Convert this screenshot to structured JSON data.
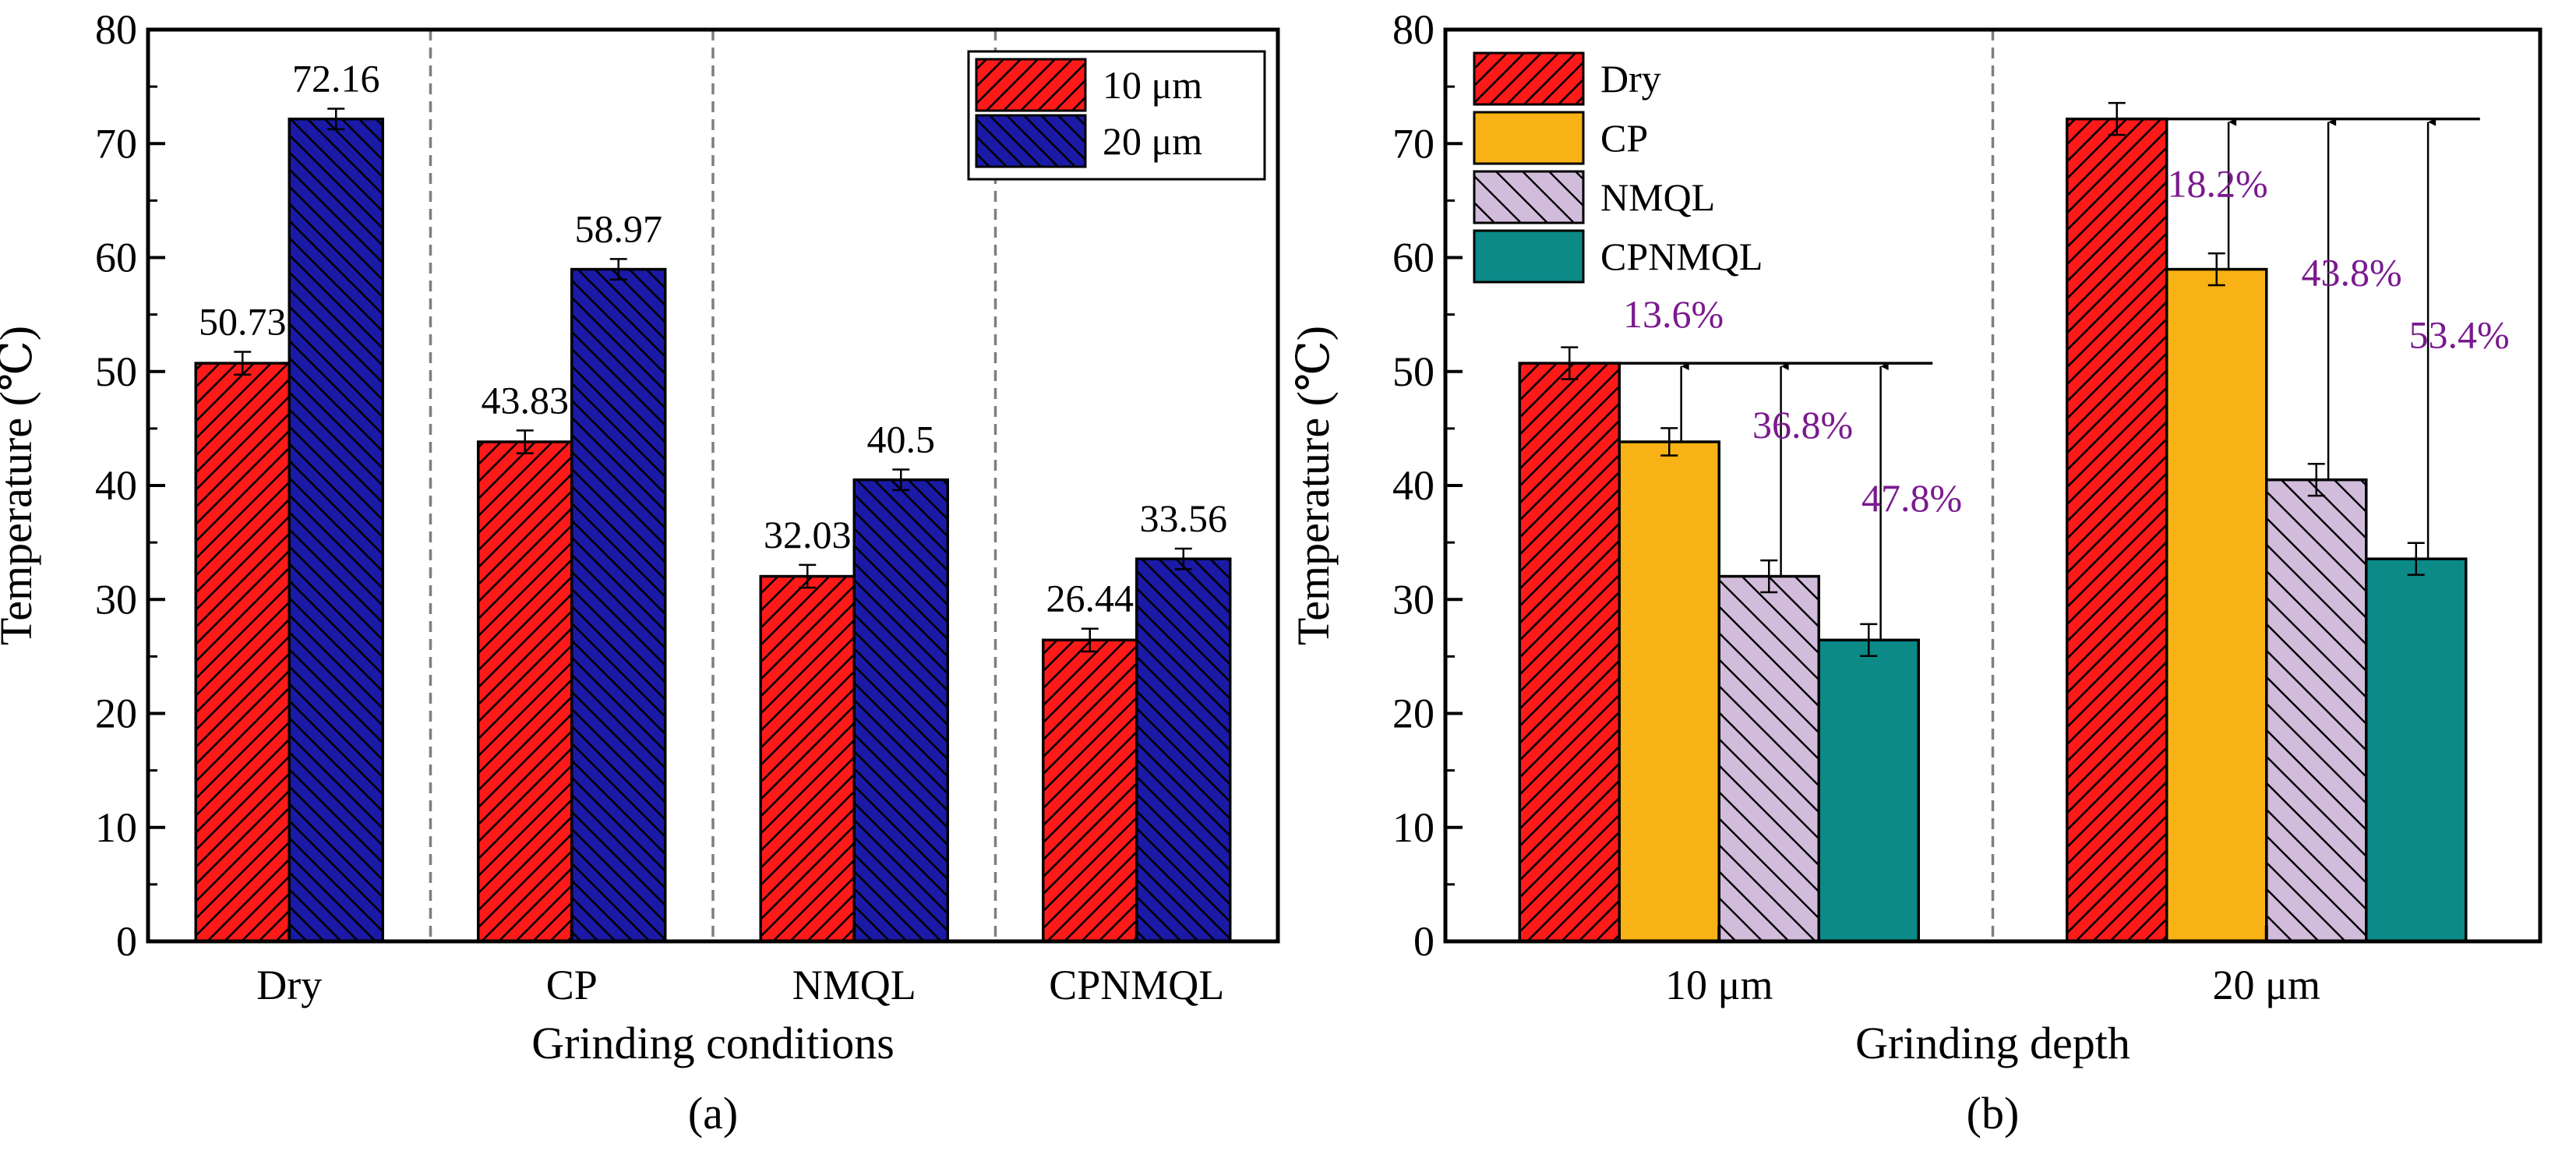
{
  "chart_data": [
    {
      "panel": "(a)",
      "type": "bar",
      "title": "",
      "xlabel": "Grinding conditions",
      "ylabel": "Temperature (℃)",
      "ylim": [
        0,
        80
      ],
      "yticks": [
        0,
        10,
        20,
        30,
        40,
        50,
        60,
        70,
        80
      ],
      "categories": [
        "Dry",
        "CP",
        "NMQL",
        "CPNMQL"
      ],
      "series": [
        {
          "name": "10 μm",
          "color": "#ff1a1a",
          "values": [
            50.73,
            43.83,
            32.03,
            26.44
          ],
          "labels": [
            "50.73",
            "43.83",
            "32.03",
            "26.44"
          ],
          "errors": [
            1.0,
            1.0,
            1.0,
            1.0
          ]
        },
        {
          "name": "20 μm",
          "color": "#1a1aa6",
          "values": [
            72.16,
            58.97,
            40.5,
            33.56
          ],
          "labels": [
            "72.16",
            "58.97",
            "40.5",
            "33.56"
          ],
          "errors": [
            0.9,
            0.9,
            0.9,
            0.9
          ]
        }
      ],
      "legend": "top-right"
    },
    {
      "panel": "(b)",
      "type": "bar",
      "title": "",
      "xlabel": "Grinding depth",
      "ylabel": "Temperature (℃)",
      "ylim": [
        0,
        80
      ],
      "yticks": [
        0,
        10,
        20,
        30,
        40,
        50,
        60,
        70,
        80
      ],
      "categories": [
        "10 μm",
        "20 μm"
      ],
      "series": [
        {
          "name": "Dry",
          "color": "#ff1a1a",
          "values": [
            50.73,
            72.16
          ],
          "errors": [
            1.4,
            1.4
          ]
        },
        {
          "name": "CP",
          "color": "#f9b215",
          "values": [
            43.83,
            58.97
          ],
          "errors": [
            1.2,
            1.4
          ]
        },
        {
          "name": "NMQL",
          "color": "#d2bcdc",
          "values": [
            32.03,
            40.5
          ],
          "errors": [
            1.4,
            1.4
          ]
        },
        {
          "name": "CPNMQL",
          "color": "#0b8a88",
          "values": [
            26.44,
            33.56
          ],
          "errors": [
            1.4,
            1.4
          ]
        }
      ],
      "annotations": [
        [
          "13.6%",
          "36.8%",
          "47.8%"
        ],
        [
          "18.2%",
          "43.8%",
          "53.4%"
        ]
      ],
      "annotation_color": "#7a1a8f",
      "legend": "top-left"
    }
  ]
}
